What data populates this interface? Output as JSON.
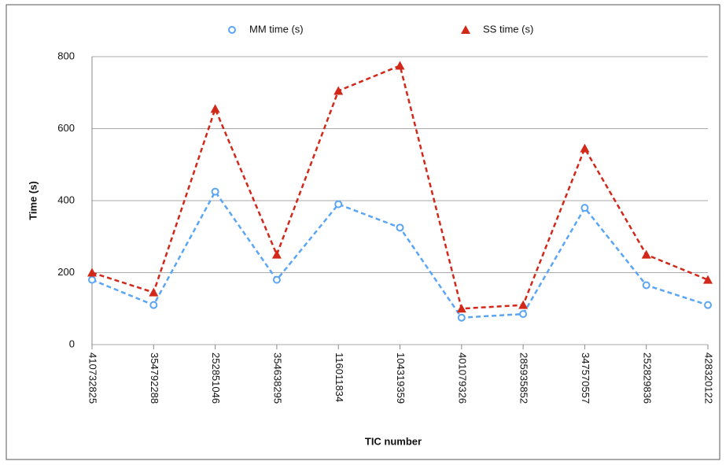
{
  "chart_data": {
    "type": "line",
    "x_label": "TIC number",
    "y_label": "Time (s)",
    "categories": [
      "410732825",
      "354792288",
      "252851046",
      "354638295",
      "116011834",
      "104319359",
      "401079326",
      "285935852",
      "347570557",
      "252829836",
      "428320122"
    ],
    "series": [
      {
        "name": "MM time (s)",
        "color": "#5aa5f5",
        "marker": "circle",
        "values": [
          180,
          110,
          425,
          180,
          390,
          325,
          75,
          85,
          380,
          165,
          110
        ]
      },
      {
        "name": "SS time (s)",
        "color": "#d2281a",
        "marker": "triangle",
        "values": [
          200,
          145,
          655,
          250,
          705,
          775,
          100,
          110,
          545,
          250,
          180
        ]
      }
    ],
    "ylim": [
      0,
      800
    ],
    "yticks": [
      0,
      200,
      400,
      600,
      800
    ],
    "grid": true,
    "legend": "top"
  }
}
